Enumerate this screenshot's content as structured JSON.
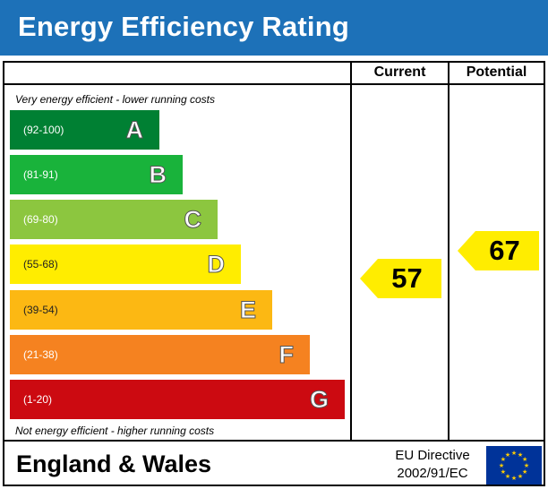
{
  "header": {
    "title": "Energy Efficiency Rating"
  },
  "columns": {
    "current": "Current",
    "potential": "Potential"
  },
  "captions": {
    "top": "Very energy efficient - lower running costs",
    "bottom": "Not energy efficient - higher running costs"
  },
  "chart_data": {
    "type": "bar",
    "title": "Energy Efficiency Rating",
    "bands": [
      {
        "letter": "A",
        "range": "(92-100)",
        "color": "#008033"
      },
      {
        "letter": "B",
        "range": "(81-91)",
        "color": "#19b33b"
      },
      {
        "letter": "C",
        "range": "(69-80)",
        "color": "#8cc63f"
      },
      {
        "letter": "D",
        "range": "(55-68)",
        "color": "#ffed00"
      },
      {
        "letter": "E",
        "range": "(39-54)",
        "color": "#fcb813"
      },
      {
        "letter": "F",
        "range": "(21-38)",
        "color": "#f58220"
      },
      {
        "letter": "G",
        "range": "(1-20)",
        "color": "#cc0a11"
      }
    ],
    "current": {
      "value": "57",
      "band": "D",
      "color": "#ffed00"
    },
    "potential": {
      "value": "67",
      "band": "D",
      "color": "#ffed00"
    }
  },
  "footer": {
    "region": "England & Wales",
    "directive_line1": "EU Directive",
    "directive_line2": "2002/91/EC",
    "flag_icon": "eu-flag-icon"
  }
}
